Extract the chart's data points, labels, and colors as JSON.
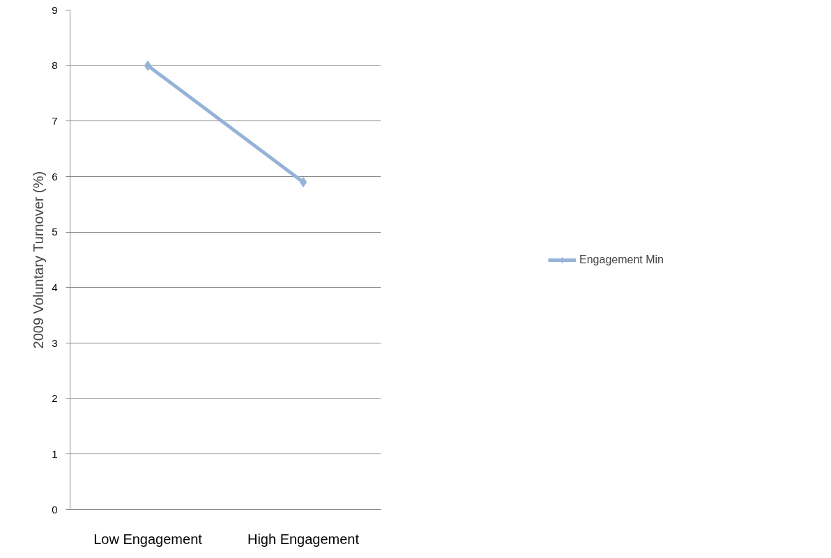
{
  "chart_data": {
    "type": "line",
    "ylabel": "2009 Voluntary Turnover (%)",
    "categories": [
      "Low Engagement",
      "High Engagement"
    ],
    "series": [
      {
        "name": "Engagement Min",
        "color": "#95b3d7",
        "values": [
          8.0,
          5.9
        ]
      }
    ],
    "ylim": [
      0,
      9
    ],
    "yticks": [
      0,
      1,
      2,
      3,
      4,
      5,
      6,
      7,
      8,
      9
    ],
    "grid": "y",
    "legend": "right",
    "marker": "diamond",
    "line_style": "solid"
  }
}
